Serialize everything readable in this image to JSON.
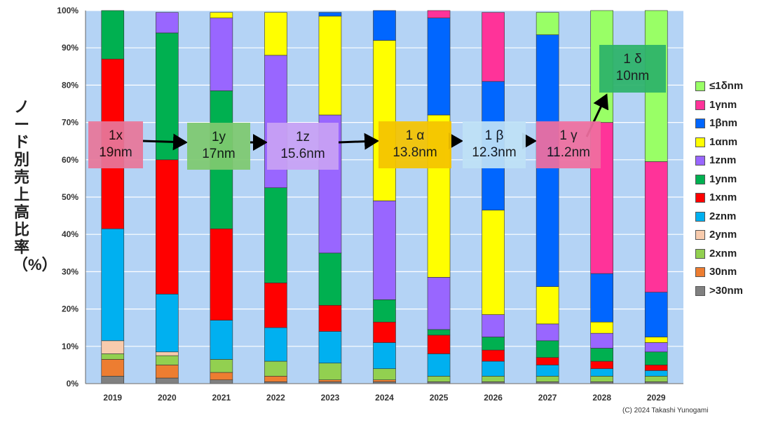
{
  "chart_data": {
    "type": "bar",
    "stacked": true,
    "title": "",
    "xlabel": "",
    "ylabel": "ノード別売上高比率（%）",
    "ylim": [
      0,
      100
    ],
    "yticks": [
      "0%",
      "10%",
      "20%",
      "30%",
      "40%",
      "50%",
      "60%",
      "70%",
      "80%",
      "90%",
      "100%"
    ],
    "categories": [
      "2019",
      "2020",
      "2021",
      "2022",
      "2023",
      "2024",
      "2025",
      "2026",
      "2027",
      "2028",
      "2029"
    ],
    "series": [
      {
        "name": ">30nm",
        "color": "#808080",
        "values": [
          2,
          1.5,
          1,
          0.5,
          0.5,
          0.5,
          0.5,
          0.5,
          0.5,
          0.5,
          0.5
        ]
      },
      {
        "name": "30nm",
        "color": "#ed7d31",
        "values": [
          4.5,
          3.5,
          2,
          1.5,
          0.5,
          0.5,
          0,
          0,
          0,
          0,
          0
        ]
      },
      {
        "name": "2xnm",
        "color": "#92d050",
        "values": [
          1.5,
          2.5,
          3.5,
          4,
          4.5,
          3,
          1.5,
          1.5,
          1.5,
          1.5,
          1.5
        ]
      },
      {
        "name": "2ynm",
        "color": "#f8cbad",
        "values": [
          3.5,
          1,
          0,
          0,
          0,
          0,
          0,
          0,
          0,
          0,
          0
        ]
      },
      {
        "name": "2znm",
        "color": "#00b0f0",
        "values": [
          30,
          15.5,
          10.5,
          9,
          8.5,
          7,
          6,
          4,
          3,
          2,
          1.5
        ]
      },
      {
        "name": "1xnm",
        "color": "#ff0000",
        "values": [
          45.5,
          36,
          24.5,
          12,
          7,
          5.5,
          5,
          3,
          2,
          2,
          1.5
        ]
      },
      {
        "name": "1ynm",
        "color": "#00b050",
        "values": [
          13,
          34,
          37,
          25.5,
          14,
          6,
          1.5,
          3.5,
          4.5,
          3.5,
          3.5
        ]
      },
      {
        "name": "1znm",
        "color": "#9966ff",
        "values": [
          0,
          5.5,
          19.5,
          35.5,
          37,
          26.5,
          14,
          6,
          4.5,
          4,
          2.5
        ]
      },
      {
        "name": "1αnm",
        "color": "#ffff00",
        "values": [
          0,
          0,
          1.5,
          11.5,
          26.5,
          43,
          43.5,
          28,
          10,
          3,
          1.5
        ]
      },
      {
        "name": "1βnm",
        "color": "#0066ff",
        "values": [
          0,
          0,
          0,
          0,
          1,
          8,
          26,
          34.5,
          67.5,
          13,
          12
        ]
      },
      {
        "name": "1γnm",
        "color": "#ff3399",
        "values": [
          0,
          0,
          0,
          0,
          0,
          0,
          2,
          18.5,
          0,
          40.5,
          35
        ]
      },
      {
        "name": "≤1δnm",
        "color": "#99ff66",
        "values": [
          0,
          0,
          0,
          0,
          0,
          0,
          0,
          0,
          6,
          30,
          40.5
        ]
      }
    ],
    "legend_order": [
      "≤1δnm",
      "1γnm",
      "1βnm",
      "1αnm",
      "1znm",
      "1ynm",
      "1xnm",
      "2znm",
      "2ynm",
      "2xnm",
      "30nm",
      ">30nm"
    ],
    "legend_position": "right",
    "grid": true,
    "annotations": [
      {
        "id": "1x",
        "line1": "1x",
        "line2": "19nm",
        "color": "#e8779a",
        "arrow_to": "1y"
      },
      {
        "id": "1y",
        "line1": "1y",
        "line2": "17nm",
        "color": "#7fca70",
        "arrow_to": "1z"
      },
      {
        "id": "1z",
        "line1": "1z",
        "line2": "15.6nm",
        "color": "#c9a2f5",
        "arrow_to": "1a"
      },
      {
        "id": "1a",
        "line1": "1 α",
        "line2": "13.8nm",
        "color": "#f5c400",
        "arrow_to": "1b"
      },
      {
        "id": "1b",
        "line1": "1 β",
        "line2": "12.3nm",
        "color": "#bfe1f7",
        "arrow_to": "1g"
      },
      {
        "id": "1g",
        "line1": "1 γ",
        "line2": "11.2nm",
        "color": "#f06fa0",
        "arrow_to": "1d"
      },
      {
        "id": "1d",
        "line1": "1 δ",
        "line2": "10nm",
        "color": "#2db36a",
        "arrow_to": ""
      }
    ],
    "copyright": "(C) 2024 Takashi Yunogami"
  }
}
